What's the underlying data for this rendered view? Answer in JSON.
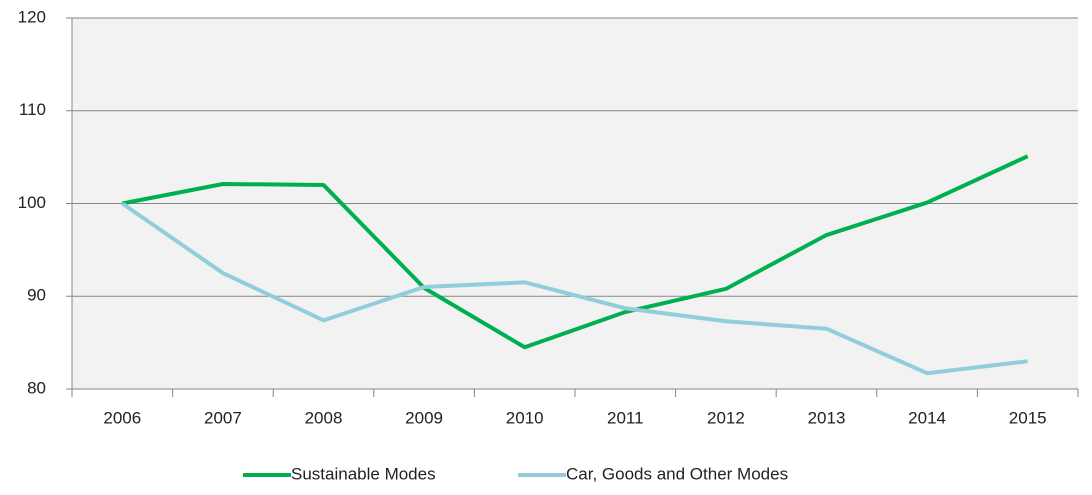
{
  "chart_data": {
    "type": "line",
    "categories": [
      "2006",
      "2007",
      "2008",
      "2009",
      "2010",
      "2011",
      "2012",
      "2013",
      "2014",
      "2015"
    ],
    "series": [
      {
        "name": "Sustainable Modes",
        "color": "#00b050",
        "values": [
          100,
          102.1,
          102.0,
          90.9,
          84.5,
          88.3,
          90.8,
          96.6,
          100.1,
          105.1
        ]
      },
      {
        "name": "Car, Goods and Other Modes",
        "color": "#92cddc",
        "values": [
          100,
          92.5,
          87.4,
          91.0,
          91.5,
          88.7,
          87.3,
          86.5,
          81.7,
          83.0
        ]
      }
    ],
    "ylim": [
      80,
      120
    ],
    "yticks": [
      80,
      90,
      100,
      110,
      120
    ],
    "grid": true,
    "legend": "bottom"
  }
}
